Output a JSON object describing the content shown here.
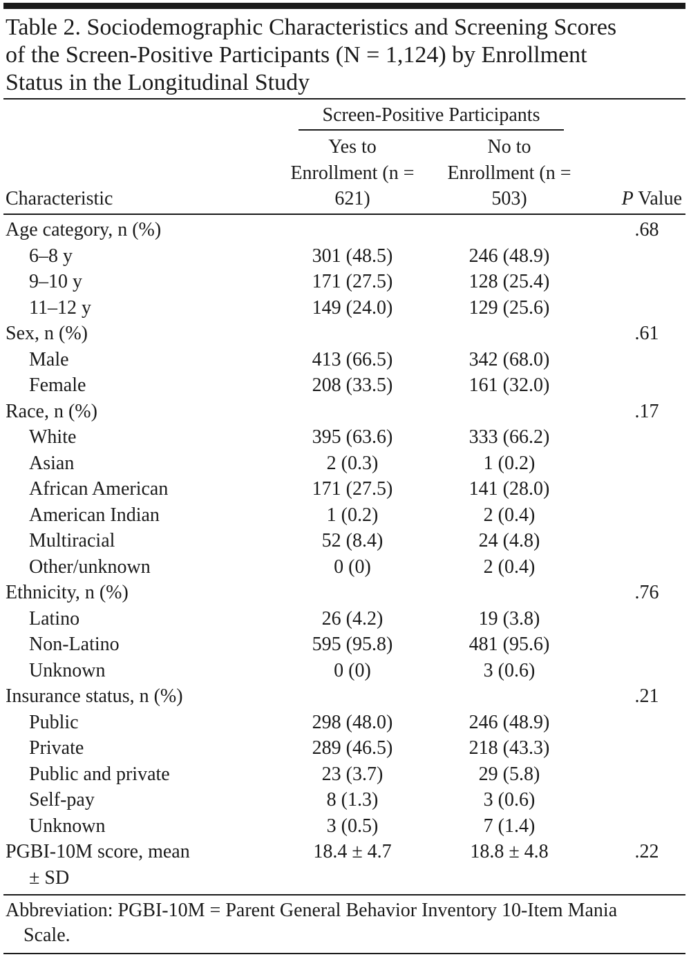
{
  "title": "Table 2. Sociodemographic Characteristics and Screening Scores of the Screen-Positive Participants (N = 1,124) by Enrollment Status in the Longitudinal Study",
  "header": {
    "group": "Screen-Positive Participants",
    "characteristic": "Characteristic",
    "yes": "Yes to Enrollment (n = 621)",
    "no": "No to Enrollment (n = 503)",
    "p": "P Value"
  },
  "sections": [
    {
      "label": "Age category, n (%)",
      "p": ".68",
      "rows": [
        [
          "6–8 y",
          "301 (48.5)",
          "246 (48.9)"
        ],
        [
          "9–10 y",
          "171 (27.5)",
          "128 (25.4)"
        ],
        [
          "11–12 y",
          "149 (24.0)",
          "129 (25.6)"
        ]
      ]
    },
    {
      "label": "Sex, n (%)",
      "p": ".61",
      "rows": [
        [
          "Male",
          "413 (66.5)",
          "342 (68.0)"
        ],
        [
          "Female",
          "208 (33.5)",
          "161 (32.0)"
        ]
      ]
    },
    {
      "label": "Race, n (%)",
      "p": ".17",
      "rows": [
        [
          "White",
          "395 (63.6)",
          "333 (66.2)"
        ],
        [
          "Asian",
          "2 (0.3)",
          "1 (0.2)"
        ],
        [
          "African American",
          "171 (27.5)",
          "141 (28.0)"
        ],
        [
          "American Indian",
          "1 (0.2)",
          "2 (0.4)"
        ],
        [
          "Multiracial",
          "52 (8.4)",
          "24 (4.8)"
        ],
        [
          "Other/unknown",
          "0 (0)",
          "2 (0.4)"
        ]
      ]
    },
    {
      "label": "Ethnicity, n (%)",
      "p": ".76",
      "rows": [
        [
          "Latino",
          "26 (4.2)",
          "19 (3.8)"
        ],
        [
          "Non-Latino",
          "595 (95.8)",
          "481 (95.6)"
        ],
        [
          "Unknown",
          "0 (0)",
          "3 (0.6)"
        ]
      ]
    },
    {
      "label": "Insurance status, n (%)",
      "p": ".21",
      "rows": [
        [
          "Public",
          "298 (48.0)",
          "246 (48.9)"
        ],
        [
          "Private",
          "289 (46.5)",
          "218 (43.3)"
        ],
        [
          "Public and private",
          "23 (3.7)",
          "29 (5.8)"
        ],
        [
          "Self-pay",
          "8 (1.3)",
          "3 (0.6)"
        ],
        [
          "Unknown",
          "3 (0.5)",
          "7 (1.4)"
        ]
      ]
    }
  ],
  "score": {
    "label": "PGBI-10M score, mean ± SD",
    "yes": "18.4 ± 4.7",
    "no": "18.8 ± 4.8",
    "p": ".22"
  },
  "footnote": "Abbreviation: PGBI-10M = Parent General Behavior Inventory 10-Item Mania Scale."
}
